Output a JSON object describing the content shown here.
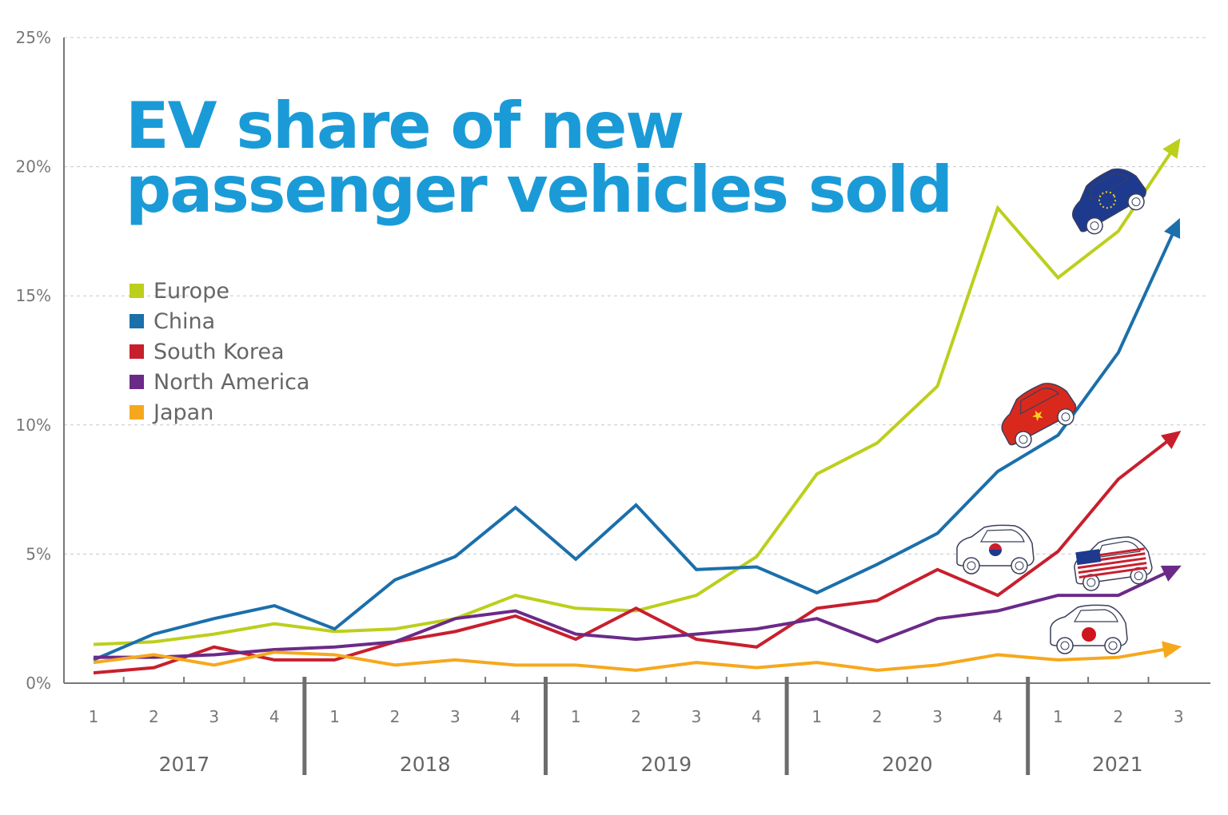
{
  "chart_data": {
    "type": "line",
    "title": "EV share of new passenger vehicles sold",
    "ylim": [
      0,
      25
    ],
    "yticks": [
      "0%",
      "5%",
      "10%",
      "15%",
      "20%",
      "25%"
    ],
    "ytick_values": [
      0,
      5,
      10,
      15,
      20,
      25
    ],
    "grid": true,
    "legend_position": "top-left",
    "quarters": [
      "1",
      "2",
      "3",
      "4",
      "1",
      "2",
      "3",
      "4",
      "1",
      "2",
      "3",
      "4",
      "1",
      "2",
      "3",
      "4",
      "1",
      "2",
      "3"
    ],
    "years": [
      {
        "label": "2017",
        "quarters": 4
      },
      {
        "label": "2018",
        "quarters": 4
      },
      {
        "label": "2019",
        "quarters": 4
      },
      {
        "label": "2020",
        "quarters": 4
      },
      {
        "label": "2021",
        "quarters": 3
      }
    ],
    "series": [
      {
        "name": "Europe",
        "color": "#bccf1c",
        "icon": "eu-flag-car-icon",
        "values": [
          1.5,
          1.6,
          1.9,
          2.3,
          2.0,
          2.1,
          2.5,
          3.4,
          2.9,
          2.8,
          3.4,
          4.9,
          8.1,
          9.3,
          11.5,
          18.4,
          15.7,
          17.5,
          21.0
        ]
      },
      {
        "name": "China",
        "color": "#1b6fab",
        "icon": "china-flag-car-icon",
        "values": [
          0.9,
          1.9,
          2.5,
          3.0,
          2.1,
          4.0,
          4.9,
          6.8,
          4.8,
          6.9,
          4.4,
          4.5,
          3.5,
          4.6,
          5.8,
          8.2,
          9.6,
          12.8,
          17.9
        ]
      },
      {
        "name": "South Korea",
        "color": "#c81f2d",
        "icon": "korea-flag-car-icon",
        "values": [
          0.4,
          0.6,
          1.4,
          0.9,
          0.9,
          1.6,
          2.0,
          2.6,
          1.7,
          2.9,
          1.7,
          1.4,
          2.9,
          3.2,
          4.4,
          3.4,
          5.1,
          7.9,
          9.7
        ]
      },
      {
        "name": "North America",
        "color": "#6b2a88",
        "icon": "usa-flag-car-icon",
        "values": [
          1.0,
          1.0,
          1.1,
          1.3,
          1.4,
          1.6,
          2.5,
          2.8,
          1.9,
          1.7,
          1.9,
          2.1,
          2.5,
          1.6,
          2.5,
          2.8,
          3.4,
          3.4,
          4.5
        ]
      },
      {
        "name": "Japan",
        "color": "#f6a81d",
        "icon": "japan-flag-car-icon",
        "values": [
          0.8,
          1.1,
          0.7,
          1.2,
          1.1,
          0.7,
          0.9,
          0.7,
          0.7,
          0.5,
          0.8,
          0.6,
          0.8,
          0.5,
          0.7,
          1.1,
          0.9,
          1.0,
          1.4
        ]
      }
    ]
  }
}
